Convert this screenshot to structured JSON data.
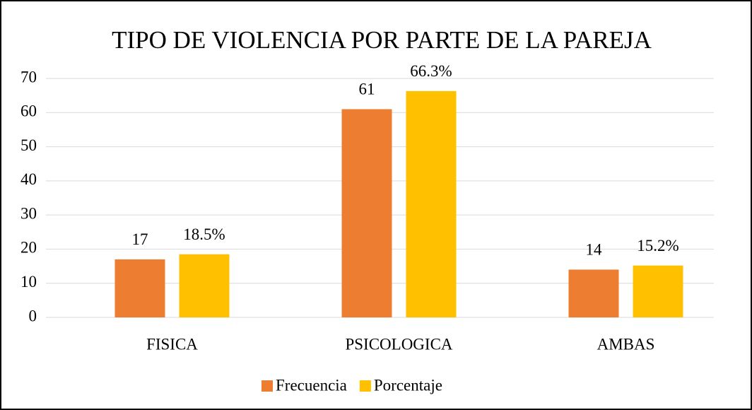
{
  "chart_data": {
    "type": "bar",
    "title": "TIPO DE VIOLENCIA POR PARTE DE LA PAREJA",
    "categories": [
      "FISICA",
      "PSICOLOGICA",
      "AMBAS"
    ],
    "series": [
      {
        "name": "Frecuencia",
        "color": "#ED7D31",
        "values": [
          17,
          61,
          14
        ]
      },
      {
        "name": "Porcentaje",
        "color": "#FFC000",
        "values": [
          18.5,
          66.3,
          15.2
        ],
        "value_labels": [
          "18.5%",
          "66.3%",
          "15.2%"
        ]
      }
    ],
    "ylim": [
      0,
      70
    ],
    "yticks": [
      0,
      10,
      20,
      30,
      40,
      50,
      60,
      70
    ],
    "grid": true,
    "legend": "bottom"
  }
}
